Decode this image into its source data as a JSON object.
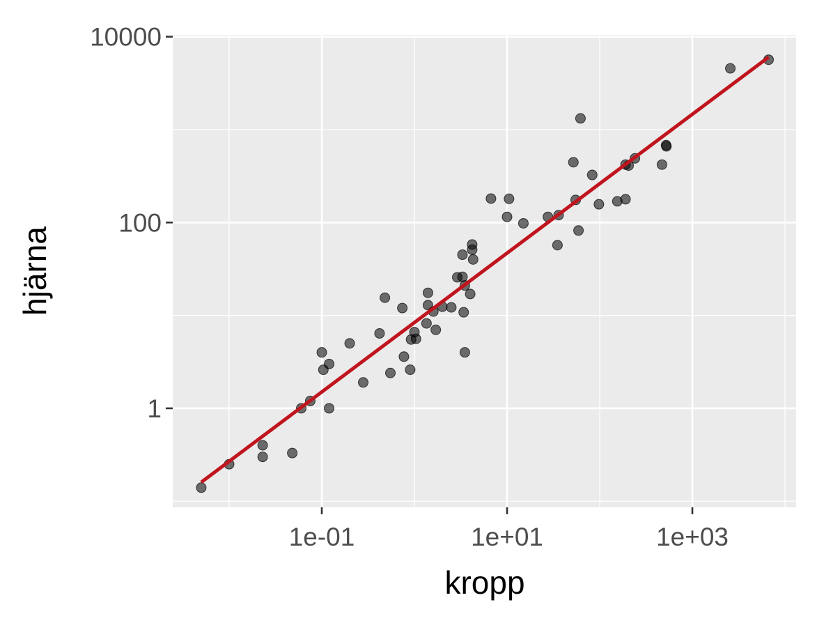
{
  "chart_data": {
    "type": "scatter",
    "x_label": "kropp",
    "y_label": "hjärna",
    "log_x": true,
    "log_y": true,
    "grid": true,
    "color": "#000000",
    "x": [
      0.005,
      0.01,
      0.023,
      0.023,
      0.048,
      0.06,
      0.075,
      0.12,
      0.1,
      0.104,
      0.12,
      0.2,
      0.28,
      0.42,
      0.48,
      0.55,
      0.74,
      0.77,
      0.9,
      0.92,
      1.0,
      1.04,
      1.35,
      1.4,
      1.4,
      1.7,
      1.6,
      2.0,
      2.5,
      2.9,
      3.3,
      3.3,
      3.4,
      3.5,
      3.5,
      4.0,
      4.2,
      4.3,
      4.2,
      6.7,
      10.5,
      10,
      15,
      27.6,
      36,
      35,
      52,
      55,
      59,
      62,
      83,
      98,
      155,
      190,
      190,
      205,
      240,
      470,
      520,
      525,
      2570,
      6654
    ],
    "values": [
      0.14,
      0.25,
      0.4,
      0.3,
      0.33,
      1.0,
      1.2,
      1.0,
      4.0,
      2.6,
      3.0,
      5.0,
      1.9,
      6.4,
      15.5,
      2.4,
      12,
      3.6,
      2.6,
      5.5,
      6.6,
      5.6,
      8.2,
      12.9,
      17.5,
      7,
      11,
      12.4,
      12.2,
      25.7,
      26,
      45,
      10.8,
      4,
      21,
      17,
      58,
      40,
      51,
      181,
      180,
      115,
      98,
      115,
      120,
      57,
      445,
      175,
      82,
      1320,
      325,
      157,
      169,
      420,
      178,
      410,
      490,
      420,
      680,
      660,
      4560,
      5650
    ],
    "fit_line": {
      "x": [
        0.005,
        6654
      ],
      "values": [
        0.16,
        6030
      ],
      "color": "#c0141e"
    },
    "xlim": [
      0.00246,
      13180
    ],
    "ylim": [
      0.086,
      10470
    ],
    "xticks": [
      {
        "value": 0.1,
        "label": "1e-01"
      },
      {
        "value": 10,
        "label": "1e+01"
      },
      {
        "value": 1000,
        "label": "1e+03"
      }
    ],
    "x_minor_ticks": [
      0.01,
      1,
      100,
      10000
    ],
    "yticks": [
      1,
      100,
      10000
    ],
    "y_minor_ticks": [
      0.1,
      10,
      1000
    ]
  }
}
